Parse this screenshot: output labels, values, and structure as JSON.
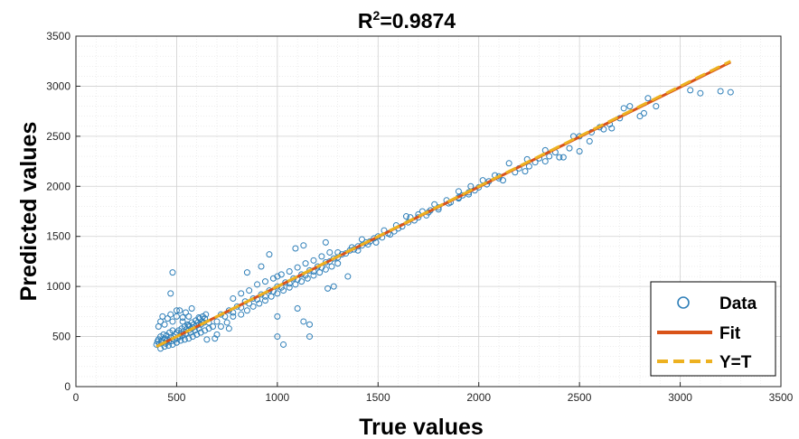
{
  "chart_data": {
    "type": "scatter",
    "title": "R²=0.9874",
    "title_main": "R",
    "title_sup": "2",
    "title_rest": "=0.9874",
    "xlabel": "True values",
    "ylabel": "Predicted values",
    "xlim": [
      0,
      3500
    ],
    "ylim": [
      0,
      3500
    ],
    "xticks": [
      0,
      500,
      1000,
      1500,
      2000,
      2500,
      3000,
      3500
    ],
    "yticks": [
      0,
      500,
      1000,
      1500,
      2000,
      2500,
      3000,
      3500
    ],
    "grid": true,
    "minor_grid": true,
    "legend_position": "bottom-right",
    "legend": [
      "Data",
      "Fit",
      "Y=T"
    ],
    "colors": {
      "data": "#2f7fb8",
      "fit": "#d95319",
      "identity": "#edb120"
    },
    "fit_line": {
      "x": [
        400,
        3250
      ],
      "y": [
        400,
        3240
      ]
    },
    "identity_line": {
      "x": [
        400,
        3250
      ],
      "y": [
        400,
        3250
      ]
    },
    "series": [
      {
        "name": "Data",
        "points": [
          [
            400,
            420
          ],
          [
            405,
            450
          ],
          [
            410,
            470
          ],
          [
            415,
            430
          ],
          [
            420,
            500
          ],
          [
            425,
            460
          ],
          [
            430,
            440
          ],
          [
            435,
            520
          ],
          [
            440,
            480
          ],
          [
            445,
            430
          ],
          [
            450,
            510
          ],
          [
            455,
            470
          ],
          [
            460,
            450
          ],
          [
            465,
            540
          ],
          [
            470,
            490
          ],
          [
            475,
            455
          ],
          [
            480,
            560
          ],
          [
            485,
            500
          ],
          [
            490,
            470
          ],
          [
            495,
            520
          ],
          [
            500,
            540
          ],
          [
            505,
            480
          ],
          [
            510,
            560
          ],
          [
            515,
            500
          ],
          [
            520,
            530
          ],
          [
            525,
            580
          ],
          [
            530,
            510
          ],
          [
            535,
            550
          ],
          [
            540,
            600
          ],
          [
            545,
            530
          ],
          [
            550,
            570
          ],
          [
            555,
            620
          ],
          [
            560,
            560
          ],
          [
            565,
            600
          ],
          [
            570,
            540
          ],
          [
            575,
            640
          ],
          [
            580,
            590
          ],
          [
            585,
            620
          ],
          [
            590,
            560
          ],
          [
            595,
            660
          ],
          [
            600,
            610
          ],
          [
            605,
            640
          ],
          [
            610,
            580
          ],
          [
            615,
            680
          ],
          [
            620,
            620
          ],
          [
            625,
            650
          ],
          [
            630,
            700
          ],
          [
            635,
            640
          ],
          [
            640,
            680
          ],
          [
            645,
            720
          ],
          [
            410,
            600
          ],
          [
            420,
            650
          ],
          [
            430,
            700
          ],
          [
            440,
            620
          ],
          [
            455,
            680
          ],
          [
            470,
            720
          ],
          [
            480,
            650
          ],
          [
            500,
            700
          ],
          [
            515,
            760
          ],
          [
            530,
            690
          ],
          [
            545,
            740
          ],
          [
            560,
            700
          ],
          [
            575,
            780
          ],
          [
            420,
            380
          ],
          [
            440,
            400
          ],
          [
            460,
            410
          ],
          [
            480,
            420
          ],
          [
            500,
            440
          ],
          [
            520,
            460
          ],
          [
            540,
            470
          ],
          [
            560,
            480
          ],
          [
            580,
            500
          ],
          [
            600,
            520
          ],
          [
            620,
            540
          ],
          [
            640,
            560
          ],
          [
            660,
            580
          ],
          [
            680,
            600
          ],
          [
            690,
            480
          ],
          [
            650,
            470
          ],
          [
            470,
            930
          ],
          [
            480,
            1140
          ],
          [
            500,
            760
          ],
          [
            530,
            650
          ],
          [
            560,
            610
          ],
          [
            610,
            690
          ],
          [
            660,
            640
          ],
          [
            700,
            650
          ],
          [
            720,
            720
          ],
          [
            740,
            700
          ],
          [
            760,
            760
          ],
          [
            780,
            740
          ],
          [
            800,
            800
          ],
          [
            820,
            790
          ],
          [
            840,
            850
          ],
          [
            860,
            830
          ],
          [
            880,
            880
          ],
          [
            900,
            870
          ],
          [
            920,
            920
          ],
          [
            940,
            900
          ],
          [
            960,
            960
          ],
          [
            980,
            950
          ],
          [
            1000,
            1000
          ],
          [
            1020,
            990
          ],
          [
            1040,
            1040
          ],
          [
            1060,
            1030
          ],
          [
            1080,
            1080
          ],
          [
            1100,
            1070
          ],
          [
            1120,
            1120
          ],
          [
            1140,
            1110
          ],
          [
            1160,
            1160
          ],
          [
            1180,
            1150
          ],
          [
            1200,
            1200
          ],
          [
            1220,
            1190
          ],
          [
            1240,
            1240
          ],
          [
            1260,
            1250
          ],
          [
            1280,
            1280
          ],
          [
            1300,
            1290
          ],
          [
            1320,
            1320
          ],
          [
            1340,
            1330
          ],
          [
            1360,
            1360
          ],
          [
            1380,
            1370
          ],
          [
            1400,
            1400
          ],
          [
            1420,
            1410
          ],
          [
            1440,
            1440
          ],
          [
            1460,
            1450
          ],
          [
            1480,
            1480
          ],
          [
            1500,
            1500
          ],
          [
            720,
            600
          ],
          [
            750,
            640
          ],
          [
            780,
            700
          ],
          [
            820,
            720
          ],
          [
            850,
            760
          ],
          [
            880,
            800
          ],
          [
            910,
            830
          ],
          [
            940,
            860
          ],
          [
            970,
            900
          ],
          [
            1000,
            930
          ],
          [
            1030,
            960
          ],
          [
            1060,
            990
          ],
          [
            1090,
            1020
          ],
          [
            1120,
            1050
          ],
          [
            1150,
            1080
          ],
          [
            1180,
            1110
          ],
          [
            1210,
            1140
          ],
          [
            1240,
            1170
          ],
          [
            1270,
            1200
          ],
          [
            1300,
            1230
          ],
          [
            780,
            880
          ],
          [
            820,
            930
          ],
          [
            860,
            960
          ],
          [
            900,
            1020
          ],
          [
            940,
            1050
          ],
          [
            980,
            1080
          ],
          [
            1020,
            1120
          ],
          [
            1060,
            1150
          ],
          [
            1100,
            1190
          ],
          [
            1140,
            1230
          ],
          [
            1180,
            1260
          ],
          [
            1220,
            1300
          ],
          [
            1260,
            1340
          ],
          [
            960,
            1320
          ],
          [
            1000,
            1100
          ],
          [
            1090,
            1380
          ],
          [
            1130,
            1410
          ],
          [
            1240,
            1440
          ],
          [
            1300,
            1340
          ],
          [
            850,
            1140
          ],
          [
            920,
            1200
          ],
          [
            700,
            520
          ],
          [
            760,
            580
          ],
          [
            1000,
            500
          ],
          [
            1030,
            420
          ],
          [
            1000,
            700
          ],
          [
            1100,
            780
          ],
          [
            1130,
            650
          ],
          [
            1160,
            620
          ],
          [
            1160,
            500
          ],
          [
            1280,
            1000
          ],
          [
            1250,
            980
          ],
          [
            1350,
            1100
          ],
          [
            1550,
            1530
          ],
          [
            1600,
            1580
          ],
          [
            1650,
            1640
          ],
          [
            1700,
            1690
          ],
          [
            1750,
            1740
          ],
          [
            1800,
            1790
          ],
          [
            1850,
            1830
          ],
          [
            1900,
            1890
          ],
          [
            1950,
            1940
          ],
          [
            2000,
            1990
          ],
          [
            1560,
            1520
          ],
          [
            1620,
            1600
          ],
          [
            1680,
            1660
          ],
          [
            1740,
            1710
          ],
          [
            1800,
            1770
          ],
          [
            1860,
            1840
          ],
          [
            1920,
            1910
          ],
          [
            1980,
            1960
          ],
          [
            2040,
            2020
          ],
          [
            2100,
            2080
          ],
          [
            1530,
            1560
          ],
          [
            1590,
            1610
          ],
          [
            1660,
            1690
          ],
          [
            1720,
            1750
          ],
          [
            1780,
            1820
          ],
          [
            1840,
            1860
          ],
          [
            1900,
            1950
          ],
          [
            1960,
            2000
          ],
          [
            2020,
            2060
          ],
          [
            2080,
            2110
          ],
          [
            1400,
            1360
          ],
          [
            1450,
            1420
          ],
          [
            1490,
            1440
          ],
          [
            1420,
            1470
          ],
          [
            1370,
            1390
          ],
          [
            1520,
            1490
          ],
          [
            1580,
            1550
          ],
          [
            1640,
            1700
          ],
          [
            1700,
            1720
          ],
          [
            1760,
            1760
          ],
          [
            2050,
            2050
          ],
          [
            2100,
            2100
          ],
          [
            2150,
            2230
          ],
          [
            2200,
            2180
          ],
          [
            2250,
            2200
          ],
          [
            2300,
            2280
          ],
          [
            2350,
            2300
          ],
          [
            2400,
            2290
          ],
          [
            2450,
            2380
          ],
          [
            2500,
            2350
          ],
          [
            2120,
            2060
          ],
          [
            2180,
            2140
          ],
          [
            2240,
            2270
          ],
          [
            2280,
            2240
          ],
          [
            2330,
            2360
          ],
          [
            2380,
            2340
          ],
          [
            2470,
            2500
          ],
          [
            2500,
            2500
          ],
          [
            2550,
            2450
          ],
          [
            2600,
            2590
          ],
          [
            2650,
            2620
          ],
          [
            2660,
            2580
          ],
          [
            2700,
            2680
          ],
          [
            2720,
            2780
          ],
          [
            2750,
            2800
          ],
          [
            2800,
            2700
          ],
          [
            2820,
            2730
          ],
          [
            2840,
            2880
          ],
          [
            2880,
            2800
          ],
          [
            3050,
            2960
          ],
          [
            3100,
            2930
          ],
          [
            3200,
            2950
          ],
          [
            3250,
            2940
          ],
          [
            2230,
            2150
          ],
          [
            2330,
            2250
          ],
          [
            2420,
            2290
          ],
          [
            2560,
            2540
          ],
          [
            2620,
            2570
          ],
          [
            1900,
            1880
          ],
          [
            1950,
            1920
          ]
        ]
      }
    ]
  },
  "legend_labels": {
    "data": "Data",
    "fit": "Fit",
    "identity": "Y=T"
  }
}
